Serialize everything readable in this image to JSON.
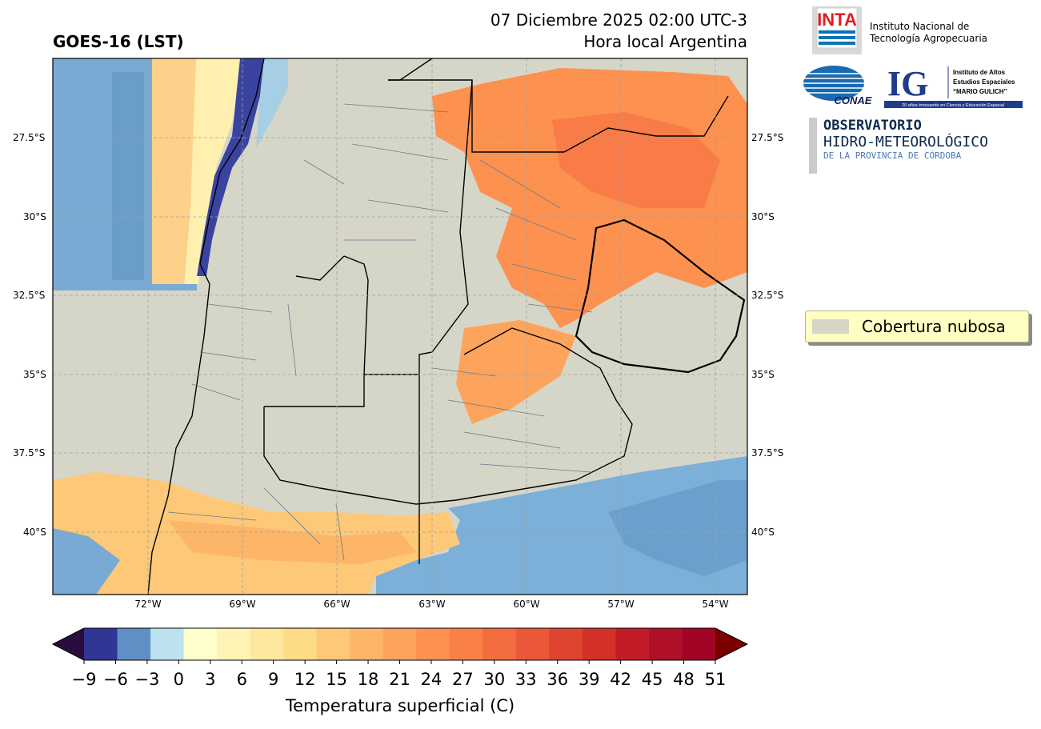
{
  "header": {
    "title_left": "GOES-16 (LST)",
    "datetime": "07 Diciembre 2025 02:00 UTC-3",
    "local_time": "Hora local Argentina"
  },
  "map": {
    "lat_labels": [
      "27.5°S",
      "30°S",
      "32.5°S",
      "35°S",
      "37.5°S",
      "40°S"
    ],
    "lon_labels": [
      "72°W",
      "69°W",
      "66°W",
      "63°W",
      "60°W",
      "57°W",
      "54°W"
    ],
    "legend_label": "Cobertura nubosa",
    "legend_color": "#d6d6c8"
  },
  "logos": {
    "inta_mark": "INTA",
    "inta_line1": "Instituto Nacional de",
    "inta_line2": "Tecnología Agropecuaria",
    "conae_mark": "CONAE",
    "ig_mark": "IG",
    "ig_line1": "Instituto de Altos",
    "ig_line2": "Estudios Espaciales",
    "ig_line3": "“MARIO GULICH”",
    "ig_tagline": "20 años innovando en Ciencia y Educación Espacial",
    "obs_line1": "OBSERVATORIO",
    "obs_line2": "HIDRO-METEOROLÓGICO",
    "obs_line3": "DE LA PROVINCIA DE CÓRDOBA"
  },
  "colorbar": {
    "label": "Temperatura superficial (C)",
    "ticks": [
      "−9",
      "−6",
      "−3",
      "0",
      "3",
      "6",
      "9",
      "12",
      "15",
      "18",
      "21",
      "24",
      "27",
      "30",
      "33",
      "36",
      "39",
      "42",
      "45",
      "48",
      "51"
    ],
    "colors": [
      "#313695",
      "#5f8fc4",
      "#bde2ef",
      "#ffffcc",
      "#fff2b5",
      "#ffe79d",
      "#fedb86",
      "#fdc877",
      "#fdb567",
      "#fda45c",
      "#fc9150",
      "#f98046",
      "#f26c3f",
      "#ea5839",
      "#df4430",
      "#d33127",
      "#c21d27",
      "#b01027",
      "#a20426"
    ],
    "under_color": "#2a0d3d",
    "over_color": "#7a0000"
  }
}
